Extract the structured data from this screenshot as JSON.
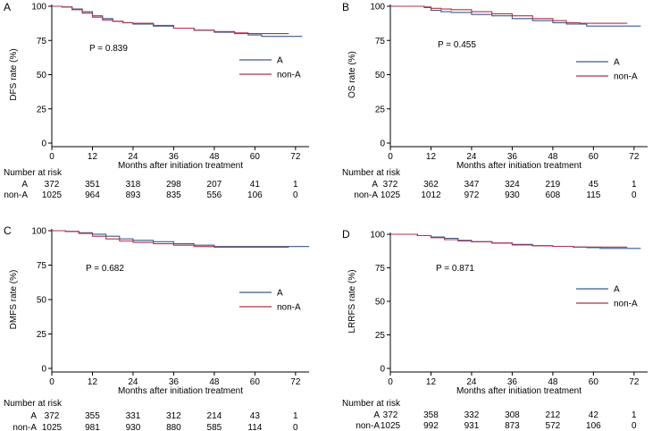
{
  "colors": {
    "A": "#3b5a8c",
    "nonA": "#b0304a",
    "axis": "#000000"
  },
  "chart_data": [
    {
      "type": "line",
      "panel": "A",
      "xlabel": "Months after initiation treatment",
      "ylabel": "DFS rate (%)",
      "xticks": [
        0,
        12,
        24,
        36,
        48,
        60,
        72
      ],
      "yticks": [
        0,
        25,
        50,
        75,
        100
      ],
      "xlim": [
        0,
        76
      ],
      "ylim": [
        0,
        100
      ],
      "p_value": "P = 0.839",
      "legend": [
        "A",
        "non-A"
      ],
      "series": [
        {
          "name": "A",
          "x": [
            0,
            3,
            6,
            9,
            12,
            15,
            18,
            21,
            24,
            30,
            36,
            42,
            48,
            54,
            58,
            62,
            66,
            70,
            74
          ],
          "y": [
            100,
            99.5,
            98,
            96,
            93,
            91,
            89,
            88,
            87,
            85.5,
            84,
            82.5,
            81,
            80,
            79,
            78,
            78,
            78,
            78
          ]
        },
        {
          "name": "non-A",
          "x": [
            0,
            3,
            6,
            9,
            12,
            15,
            18,
            21,
            24,
            30,
            36,
            42,
            48,
            54,
            58,
            62,
            66,
            70
          ],
          "y": [
            100,
            99.5,
            97.5,
            95,
            92,
            90,
            89,
            88,
            87.5,
            86,
            84,
            82.5,
            81.5,
            80.5,
            80,
            80,
            80,
            80
          ]
        }
      ],
      "risk_table": {
        "header": "Number at risk",
        "rows": [
          {
            "label": "A",
            "values": [
              "372",
              "351",
              "318",
              "298",
              "207",
              "41",
              "1"
            ]
          },
          {
            "label": "non-A",
            "values": [
              "1025",
              "964",
              "893",
              "835",
              "556",
              "106",
              "0"
            ]
          }
        ]
      }
    },
    {
      "type": "line",
      "panel": "B",
      "xlabel": "Months after initiation treatment",
      "ylabel": "OS rate (%)",
      "xticks": [
        0,
        12,
        24,
        36,
        48,
        60,
        72
      ],
      "yticks": [
        0,
        25,
        50,
        75,
        100
      ],
      "xlim": [
        0,
        76
      ],
      "ylim": [
        0,
        100
      ],
      "p_value": "P = 0.455",
      "legend": [
        "A",
        "non-A"
      ],
      "series": [
        {
          "name": "A",
          "x": [
            0,
            6,
            10,
            12,
            15,
            18,
            24,
            30,
            36,
            42,
            48,
            52,
            56,
            58,
            62,
            66,
            70,
            74
          ],
          "y": [
            100,
            100,
            99,
            97,
            96,
            95.5,
            94,
            93,
            91,
            89.5,
            88,
            87,
            87,
            85.5,
            85.5,
            85.5,
            85.5,
            85.5
          ]
        },
        {
          "name": "non-A",
          "x": [
            0,
            6,
            10,
            12,
            15,
            18,
            24,
            30,
            36,
            42,
            48,
            52,
            56,
            60,
            64,
            68,
            70
          ],
          "y": [
            100,
            100,
            99.5,
            98.5,
            98,
            97.5,
            96,
            94.5,
            93,
            91,
            89.5,
            88,
            87.5,
            87.5,
            87.5,
            87.5,
            87.5
          ]
        }
      ],
      "risk_table": {
        "header": "Number at risk",
        "rows": [
          {
            "label": "A",
            "values": [
              "372",
              "362",
              "347",
              "324",
              "219",
              "45",
              "1"
            ]
          },
          {
            "label": "non-A",
            "values": [
              "1025",
              "1012",
              "972",
              "930",
              "608",
              "115",
              "0"
            ]
          }
        ]
      }
    },
    {
      "type": "line",
      "panel": "C",
      "xlabel": "Months after initiation treatment",
      "ylabel": "DMFS rate (%)",
      "xticks": [
        0,
        12,
        24,
        36,
        48,
        60,
        72
      ],
      "yticks": [
        0,
        25,
        50,
        75,
        100
      ],
      "xlim": [
        0,
        76
      ],
      "ylim": [
        0,
        100
      ],
      "p_value": "P = 0.682",
      "legend": [
        "A",
        "non-A"
      ],
      "series": [
        {
          "name": "A",
          "x": [
            0,
            4,
            8,
            12,
            16,
            20,
            24,
            30,
            36,
            42,
            48,
            54,
            60,
            66,
            72,
            76
          ],
          "y": [
            100,
            99.5,
            98.5,
            97.5,
            96,
            94,
            93,
            92,
            90.5,
            89.5,
            88.5,
            88.5,
            88.5,
            88.5,
            88.5,
            88.5
          ]
        },
        {
          "name": "non-A",
          "x": [
            0,
            4,
            8,
            12,
            16,
            20,
            24,
            30,
            36,
            42,
            48,
            54,
            60,
            66,
            70
          ],
          "y": [
            100,
            99.5,
            98,
            96,
            94,
            92.5,
            91.5,
            90.5,
            89.5,
            88.5,
            88,
            88,
            88,
            88,
            88
          ]
        }
      ],
      "risk_table": {
        "header": "Number at risk",
        "rows": [
          {
            "label": "A",
            "values": [
              "372",
              "355",
              "331",
              "312",
              "214",
              "43",
              "1"
            ]
          },
          {
            "label": "non-A",
            "values": [
              "1025",
              "981",
              "930",
              "880",
              "585",
              "114",
              "0"
            ]
          }
        ]
      }
    },
    {
      "type": "line",
      "panel": "D",
      "xlabel": "Months after initiation treatment",
      "ylabel": "LRRFS rate (%)",
      "xticks": [
        0,
        12,
        24,
        36,
        48,
        60,
        72
      ],
      "yticks": [
        0,
        25,
        50,
        75,
        100
      ],
      "xlim": [
        0,
        76
      ],
      "ylim": [
        0,
        100
      ],
      "p_value": "P = 0.871",
      "legend": [
        "A",
        "non-A"
      ],
      "series": [
        {
          "name": "A",
          "x": [
            0,
            4,
            8,
            12,
            16,
            20,
            24,
            30,
            36,
            42,
            48,
            54,
            58,
            62,
            66,
            70,
            74
          ],
          "y": [
            100,
            100,
            99,
            98,
            97,
            95.5,
            94.5,
            93.5,
            92.5,
            91.5,
            91,
            90.5,
            90,
            89.5,
            89.5,
            89.5,
            89.5
          ]
        },
        {
          "name": "non-A",
          "x": [
            0,
            4,
            8,
            12,
            16,
            20,
            24,
            30,
            36,
            42,
            48,
            54,
            60,
            66,
            70
          ],
          "y": [
            100,
            100,
            99,
            97.5,
            96,
            95,
            94.5,
            93.5,
            92,
            91.5,
            91,
            90.5,
            90.5,
            90.5,
            90.5
          ]
        }
      ],
      "risk_table": {
        "header": "Number at risk",
        "rows": [
          {
            "label": "A",
            "values": [
              "372",
              "358",
              "332",
              "308",
              "212",
              "42",
              "1"
            ]
          },
          {
            "label": "non-A",
            "values": [
              "1025",
              "992",
              "931",
              "873",
              "572",
              "106",
              "0"
            ]
          }
        ]
      }
    }
  ]
}
